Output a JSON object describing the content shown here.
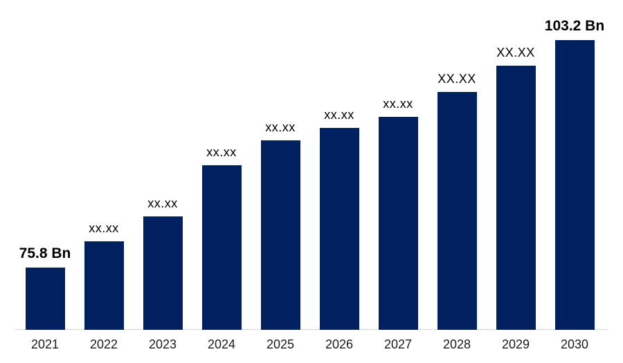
{
  "chart_data": {
    "type": "bar",
    "title": "",
    "xlabel": "",
    "ylabel": "",
    "unit": "Bn",
    "grid": false,
    "legend": "none",
    "y_baseline_value": 68.3,
    "ylim": [
      68.3,
      104.5
    ],
    "categories": [
      "2021",
      "2022",
      "2023",
      "2024",
      "2025",
      "2026",
      "2027",
      "2028",
      "2029",
      "2030"
    ],
    "values_estimated": [
      75.8,
      79.0,
      82.0,
      88.1,
      91.1,
      92.6,
      94.0,
      97.0,
      100.1,
      103.2
    ],
    "known_values": {
      "2021": "75.8 Bn",
      "2030": "103.2 Bn"
    },
    "points": [
      {
        "year": "2021",
        "value": 75.8,
        "label": "75.8 Bn",
        "label_size": "large"
      },
      {
        "year": "2022",
        "value": 79.0,
        "label": "xx.xx",
        "label_size": "small"
      },
      {
        "year": "2023",
        "value": 82.0,
        "label": "xx.xx",
        "label_size": "small"
      },
      {
        "year": "2024",
        "value": 88.1,
        "label": "xx.xx",
        "label_size": "small"
      },
      {
        "year": "2025",
        "value": 91.1,
        "label": "xx.xx",
        "label_size": "small"
      },
      {
        "year": "2026",
        "value": 92.6,
        "label": "xx.xx",
        "label_size": "small"
      },
      {
        "year": "2027",
        "value": 94.0,
        "label": "xx.xx",
        "label_size": "small"
      },
      {
        "year": "2028",
        "value": 97.0,
        "label": "XX.XX",
        "label_size": "medium"
      },
      {
        "year": "2029",
        "value": 100.1,
        "label": "XX.XX",
        "label_size": "medium"
      },
      {
        "year": "2030",
        "value": 103.2,
        "label": "103.2 Bn",
        "label_size": "large"
      }
    ],
    "colors": {
      "bar": "#002060",
      "axis_line": "#b3b3b3",
      "value_label_text": "#000000",
      "tick_text": "#1a1a1a",
      "background": "#ffffff"
    }
  }
}
